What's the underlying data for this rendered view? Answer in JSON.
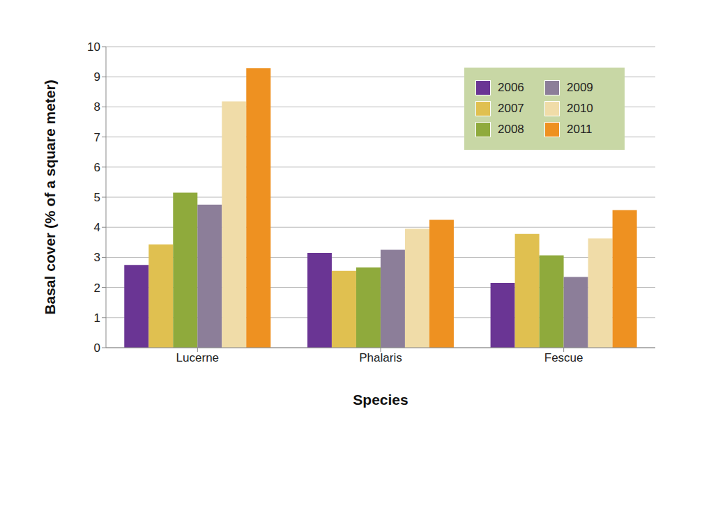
{
  "chart_data": {
    "type": "bar",
    "x_label": "Species",
    "y_label": "Basal cover (% of a square meter)",
    "categories": [
      "Lucerne",
      "Phalaris",
      "Fescue"
    ],
    "series": [
      {
        "name": "2006",
        "color": "#6a3594",
        "values": [
          2.75,
          3.15,
          2.15
        ]
      },
      {
        "name": "2007",
        "color": "#e0c050",
        "values": [
          3.43,
          2.55,
          3.78
        ]
      },
      {
        "name": "2008",
        "color": "#8faa3c",
        "values": [
          5.15,
          2.67,
          3.07
        ]
      },
      {
        "name": "2009",
        "color": "#8c7e99",
        "values": [
          4.75,
          3.25,
          2.35
        ]
      },
      {
        "name": "2010",
        "color": "#f0dca8",
        "values": [
          8.18,
          3.95,
          3.63
        ]
      },
      {
        "name": "2011",
        "color": "#ee9121",
        "values": [
          9.28,
          4.25,
          4.57
        ]
      }
    ],
    "ylim": [
      0,
      10
    ],
    "yticks": [
      0,
      1,
      2,
      3,
      4,
      5,
      6,
      7,
      8,
      9,
      10
    ],
    "grid": true,
    "legend": "top-right"
  }
}
